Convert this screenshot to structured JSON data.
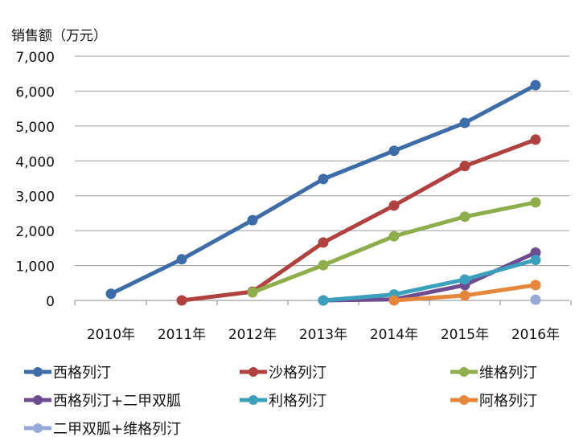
{
  "chart_data": {
    "type": "line",
    "title": "",
    "ylabel": "销售额（万元）",
    "xlabel": "",
    "ylim": [
      0,
      7000
    ],
    "yticks": [
      "0",
      "1,000",
      "2,000",
      "3,000",
      "4,000",
      "5,000",
      "6,000",
      "7,000"
    ],
    "categories": [
      "2010年",
      "2011年",
      "2012年",
      "2013年",
      "2014年",
      "2015年",
      "2016年"
    ],
    "grid": true,
    "legend": "bottom",
    "series": [
      {
        "name": "西格列汀",
        "color": "#3D6DA8",
        "values": [
          190,
          1180,
          2300,
          3480,
          4290,
          5090,
          6170
        ]
      },
      {
        "name": "沙格列汀",
        "color": "#B0413E",
        "values": [
          null,
          0,
          250,
          1660,
          2720,
          3850,
          4610
        ]
      },
      {
        "name": "维格列汀",
        "color": "#8DAE4A",
        "values": [
          null,
          null,
          230,
          1010,
          1840,
          2400,
          2810
        ]
      },
      {
        "name": "西格列汀+二甲双胍",
        "color": "#6F4B91",
        "values": [
          null,
          null,
          null,
          0,
          30,
          440,
          1370
        ]
      },
      {
        "name": "利格列汀",
        "color": "#3BA0BB",
        "values": [
          null,
          null,
          null,
          0,
          170,
          600,
          1160
        ]
      },
      {
        "name": "阿格列汀",
        "color": "#E5863A",
        "values": [
          null,
          null,
          null,
          null,
          0,
          140,
          440
        ]
      },
      {
        "name": "二甲双胍+维格列汀",
        "color": "#97A9D6",
        "values": [
          null,
          null,
          null,
          null,
          null,
          null,
          20
        ]
      }
    ]
  }
}
